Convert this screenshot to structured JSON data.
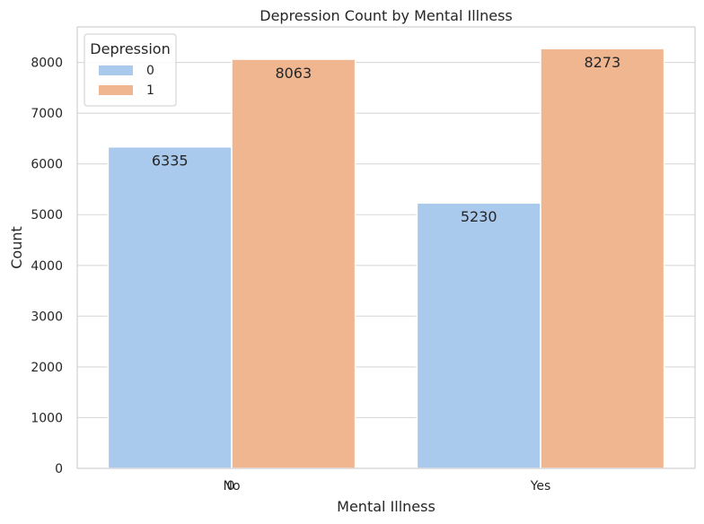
{
  "chart_data": {
    "type": "bar",
    "title": "Depression Count by Mental Illness",
    "xlabel": "Mental Illness",
    "ylabel": "Count",
    "categories": [
      "No",
      "Yes"
    ],
    "overlap_text": "0",
    "ylim": [
      0,
      8700
    ],
    "yticks": [
      0,
      1000,
      2000,
      3000,
      4000,
      5000,
      6000,
      7000,
      8000
    ],
    "grid": true,
    "legend": {
      "title": "Depression",
      "placement": "top-left"
    },
    "series": [
      {
        "name": "0",
        "values": [
          6335,
          5230
        ],
        "color": "#a9c9ed"
      },
      {
        "name": "1",
        "values": [
          8063,
          8273
        ],
        "color": "#f0b690"
      }
    ]
  }
}
